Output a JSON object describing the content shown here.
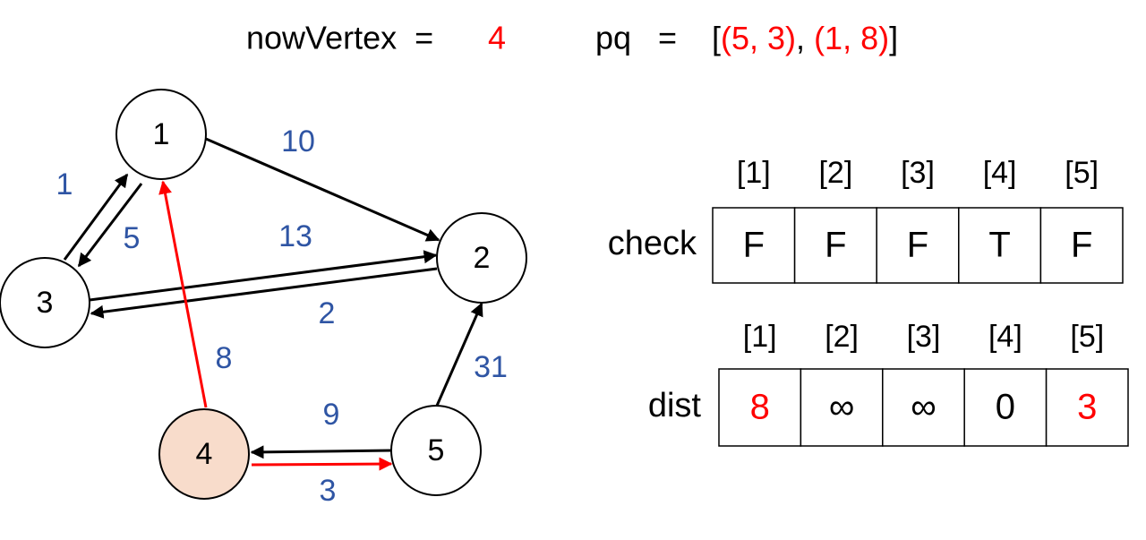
{
  "header": {
    "now_label": "nowVertex  =",
    "now_value": "4",
    "pq_label": "pq   =",
    "pq_open": "[",
    "pq_items": [
      "(5, 3)",
      "(1, 8)"
    ],
    "pq_sep": ", ",
    "pq_close": "]"
  },
  "graph": {
    "nodes": [
      {
        "label": "1"
      },
      {
        "label": "2"
      },
      {
        "label": "3"
      },
      {
        "label": "4",
        "current": true
      },
      {
        "label": "5"
      }
    ],
    "edges": [
      {
        "from": "1",
        "to": "2",
        "weight": "10"
      },
      {
        "from": "3",
        "to": "1",
        "weight": "1"
      },
      {
        "from": "1",
        "to": "3",
        "weight": "5"
      },
      {
        "from": "3",
        "to": "2",
        "weight": "13"
      },
      {
        "from": "2",
        "to": "3",
        "weight": "2"
      },
      {
        "from": "4",
        "to": "1",
        "weight": "8",
        "highlight": true
      },
      {
        "from": "5",
        "to": "2",
        "weight": "31"
      },
      {
        "from": "5",
        "to": "4",
        "weight": "9"
      },
      {
        "from": "4",
        "to": "5",
        "weight": "3",
        "highlight": true
      }
    ]
  },
  "tables": [
    {
      "label": "check",
      "headers": [
        "[1]",
        "[2]",
        "[3]",
        "[4]",
        "[5]"
      ],
      "cells": [
        "F",
        "F",
        "F",
        "T",
        "F"
      ],
      "highlight": [
        false,
        false,
        false,
        false,
        false
      ]
    },
    {
      "label": "dist",
      "headers": [
        "[1]",
        "[2]",
        "[3]",
        "[4]",
        "[5]"
      ],
      "cells": [
        "8",
        "∞",
        "∞",
        "0",
        "3"
      ],
      "highlight": [
        true,
        false,
        false,
        false,
        true
      ]
    }
  ]
}
